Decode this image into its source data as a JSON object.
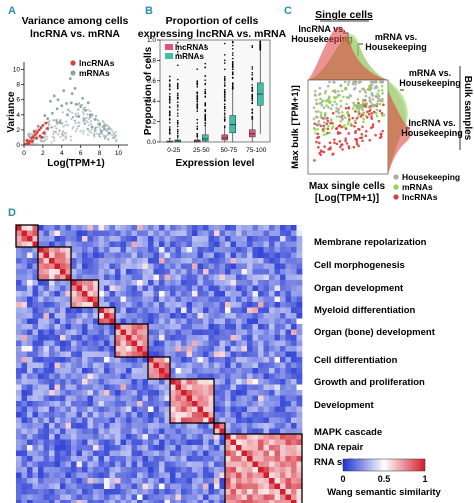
{
  "colors": {
    "panel_label": "#2b8fa6",
    "lncrna": "#e03a3a",
    "mrna_scatter": "#8fa3a3",
    "mrna_box": "#3fc0a6",
    "lncrna_box": "#e0557a",
    "housekeeping": "#aaaaaa",
    "mrna_c": "#8fd44a",
    "heatmap_low": "#1e32d2",
    "heatmap_mid": "#ffffff",
    "heatmap_high": "#d21e2c"
  },
  "panels": {
    "a": {
      "label": "A",
      "title_line1": "Variance among cells",
      "title_line2": "lncRNA vs. mRNA",
      "xlabel": "Log(TPM+1)",
      "ylabel": "Variance",
      "legend": [
        "lncRNAs",
        "mRNAs"
      ],
      "xticks": [
        "0",
        "2",
        "4",
        "6",
        "8",
        "10"
      ],
      "yticks": [
        "0",
        "2",
        "4",
        "6",
        "8",
        "10"
      ]
    },
    "b": {
      "label": "B",
      "title_line1": "Proportion of cells",
      "title_line2": "expressing lncRNA vs. mRNA",
      "xlabel": "Expression   level",
      "ylabel": "Proportion of cells",
      "legend": [
        "lncRNAs",
        "mRNAs"
      ],
      "yticks": [
        "0.0",
        "0.2",
        "0.4",
        "0.6",
        "0.8",
        "1.0"
      ]
    },
    "c": {
      "label": "C",
      "top_title": "Single cells",
      "top_ann1_line1": "lncRNA vs.",
      "top_ann1_line2": "Housekeeping",
      "top_ann2_line1": "mRNA vs.",
      "top_ann2_line2": "Housekeeping",
      "right_ann1_line1": "mRNA vs.",
      "right_ann1_line2": "Housekeeping",
      "right_ann2_line1": "lncRNA vs.",
      "right_ann2_line2": "Housekeeping",
      "side_title": "Bulk samples",
      "xlabel_line1": "Max single cells",
      "xlabel_line2": "[Log(TPM+1)]",
      "ylabel": "Max bulk [TPM+1)]",
      "legend": [
        "Housekeeping",
        "mRNAs",
        "lncRNAs"
      ]
    },
    "d": {
      "label": "D",
      "colorbar_ticks": [
        "0",
        "0.5",
        "1"
      ],
      "colorbar_label": "Wang semantic similarity",
      "clusters": [
        "Membrane repolarization",
        "Cell morphogenesis",
        "Organ development",
        "Myeloid differentiation",
        "Organ (bone) development",
        "Cell differentiation",
        "Growth and proliferation",
        "Development",
        "MAPK cascade",
        "DNA repair",
        "RNA splicing"
      ]
    }
  },
  "chart_data": [
    {
      "type": "scatter",
      "panel": "A",
      "title": "Variance among cells lncRNA vs. mRNA",
      "xlabel": "Log(TPM+1)",
      "ylabel": "Variance",
      "xlim": [
        0,
        11
      ],
      "ylim": [
        0,
        11
      ],
      "series": [
        {
          "name": "lncRNAs",
          "points": [
            [
              0.2,
              0.1
            ],
            [
              0.4,
              0.3
            ],
            [
              0.6,
              0.5
            ],
            [
              0.8,
              0.9
            ],
            [
              1.0,
              1.1
            ],
            [
              1.2,
              1.4
            ],
            [
              1.4,
              1.7
            ],
            [
              1.6,
              2.0
            ],
            [
              1.8,
              2.3
            ],
            [
              2.0,
              2.6
            ],
            [
              0.5,
              0.2
            ],
            [
              0.9,
              0.5
            ],
            [
              1.3,
              0.9
            ],
            [
              1.7,
              1.2
            ],
            [
              2.1,
              1.6
            ],
            [
              2.3,
              2.9
            ],
            [
              2.5,
              2.2
            ],
            [
              0.3,
              0.6
            ],
            [
              1.1,
              1.8
            ],
            [
              1.9,
              1.0
            ]
          ]
        },
        {
          "name": "mRNAs",
          "points": [
            [
              1.5,
              2.5
            ],
            [
              2.5,
              3.5
            ],
            [
              3.0,
              4.2
            ],
            [
              3.5,
              4.8
            ],
            [
              4.0,
              5.2
            ],
            [
              4.5,
              5.5
            ],
            [
              5.0,
              5.6
            ],
            [
              5.5,
              5.4
            ],
            [
              6.0,
              5.1
            ],
            [
              6.5,
              4.6
            ],
            [
              7.0,
              4.0
            ],
            [
              7.5,
              3.4
            ],
            [
              8.0,
              2.8
            ],
            [
              8.5,
              2.1
            ],
            [
              9.0,
              1.6
            ],
            [
              3.2,
              6.5
            ],
            [
              4.2,
              7.2
            ],
            [
              5.1,
              6.8
            ],
            [
              2.8,
              5.8
            ],
            [
              6.2,
              6.2
            ],
            [
              3.8,
              3.0
            ],
            [
              5.8,
              3.8
            ],
            [
              7.2,
              2.4
            ],
            [
              4.6,
              4.0
            ],
            [
              2.2,
              3.9
            ],
            [
              3.6,
              6.0
            ],
            [
              5.4,
              7.5
            ],
            [
              4.9,
              8.8
            ],
            [
              6.8,
              5.6
            ],
            [
              8.2,
              1.8
            ]
          ]
        }
      ]
    },
    {
      "type": "box",
      "panel": "B",
      "title": "Proportion of cells expressing lncRNA vs. mRNA",
      "xlabel": "Expression level",
      "ylabel": "Proportion of cells",
      "categories": [
        "0-25",
        "25-50",
        "50-75",
        "75-100"
      ],
      "ylim": [
        0,
        1
      ],
      "series": [
        {
          "name": "lncRNAs",
          "q1": [
            0.0,
            0.0,
            0.02,
            0.05
          ],
          "median": [
            0.0,
            0.01,
            0.04,
            0.08
          ],
          "q3": [
            0.01,
            0.02,
            0.07,
            0.12
          ],
          "whisker_low": [
            0.0,
            0.0,
            0.0,
            0.0
          ],
          "whisker_high": [
            0.02,
            0.05,
            0.14,
            0.22
          ]
        },
        {
          "name": "mRNAs",
          "q1": [
            0.0,
            0.01,
            0.09,
            0.36
          ],
          "median": [
            0.01,
            0.03,
            0.17,
            0.47
          ],
          "q3": [
            0.02,
            0.07,
            0.26,
            0.58
          ],
          "whisker_low": [
            0.0,
            0.0,
            0.0,
            0.08
          ],
          "whisker_high": [
            0.05,
            0.16,
            0.52,
            0.9
          ]
        }
      ]
    },
    {
      "type": "scatter",
      "panel": "C",
      "xlabel": "Max single cells [Log(TPM+1)]",
      "ylabel": "Max bulk [TPM+1)]",
      "series": [
        {
          "name": "Housekeeping"
        },
        {
          "name": "mRNAs"
        },
        {
          "name": "lncRNAs"
        }
      ]
    },
    {
      "type": "heatmap",
      "panel": "D",
      "colorbar_label": "Wang semantic similarity",
      "zlim": [
        0,
        1
      ]
    }
  ]
}
